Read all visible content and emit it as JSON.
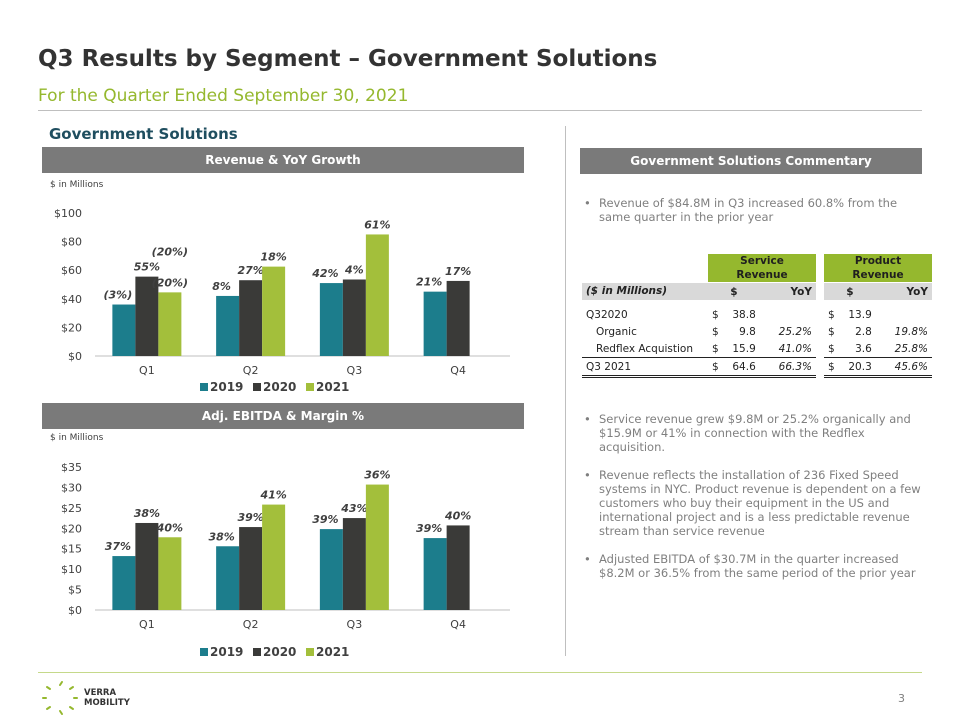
{
  "header": {
    "title": "Q3 Results by Segment – Government Solutions",
    "subtitle": "For the Quarter Ended September 30, 2021",
    "segment_title": "Government Solutions"
  },
  "colors": {
    "s2019": "#1c7d8c",
    "s2020": "#3a3a38",
    "s2021": "#a3bf3b",
    "header_bg": "#7a7a7a",
    "accent": "#95b82e"
  },
  "chart_data": [
    {
      "type": "bar",
      "title": "Revenue & YoY Growth",
      "units_label": "$ in Millions",
      "categories": [
        "Q1",
        "Q2",
        "Q3",
        "Q4"
      ],
      "yticks": [
        "$0",
        "$20",
        "$40",
        "$60",
        "$80",
        "$100"
      ],
      "ylim": [
        0,
        100
      ],
      "series": [
        {
          "name": "2019",
          "values": [
            36,
            42,
            51,
            45
          ],
          "labels": [
            "(3%)",
            "8%",
            "42%",
            "21%"
          ]
        },
        {
          "name": "2020",
          "values": [
            55.5,
            53,
            53.5,
            52.5
          ],
          "labels": [
            "55%",
            "27%",
            "4%",
            "17%"
          ]
        },
        {
          "name": "2021",
          "values": [
            44.5,
            62.5,
            85,
            null
          ],
          "labels": [
            "(20%)",
            "18%",
            "61%",
            ""
          ]
        }
      ],
      "annotation": "(20%)",
      "legend": "bottom"
    },
    {
      "type": "bar",
      "title": "Adj. EBITDA & Margin %",
      "units_label": "$ in Millions",
      "categories": [
        "Q1",
        "Q2",
        "Q3",
        "Q4"
      ],
      "yticks": [
        "$0",
        "$5",
        "$10",
        "$15",
        "$20",
        "$25",
        "$30",
        "$35"
      ],
      "ylim": [
        0,
        35
      ],
      "series": [
        {
          "name": "2019",
          "values": [
            13.2,
            15.6,
            19.8,
            17.6
          ],
          "labels": [
            "37%",
            "38%",
            "39%",
            "39%"
          ]
        },
        {
          "name": "2020",
          "values": [
            21.3,
            20.3,
            22.5,
            20.7
          ],
          "labels": [
            "38%",
            "39%",
            "43%",
            "40%"
          ]
        },
        {
          "name": "2021",
          "values": [
            17.8,
            25.8,
            30.7,
            null
          ],
          "labels": [
            "40%",
            "41%",
            "36%",
            ""
          ]
        }
      ],
      "legend": "bottom"
    }
  ],
  "commentary": {
    "header": "Government Solutions Commentary",
    "bullets_top": [
      "Revenue of $84.8M in Q3 increased 60.8% from the same quarter in the prior year"
    ],
    "bullets_bottom": [
      "Service revenue grew $9.8M or 25.2% organically and $15.9M or 41% in connection with the Redflex acquisition.",
      "Revenue reflects the installation of 236 Fixed Speed systems in NYC. Product revenue is dependent on a few customers who buy their equipment in the US and international project and is a less predictable revenue stream than service revenue",
      "Adjusted EBITDA of $30.7M in the quarter increased $8.2M or 36.5% from the same period of the prior year"
    ]
  },
  "table": {
    "service_header": "Service Revenue",
    "product_header": "Product Revenue",
    "units": "($ in Millions)",
    "col_dollar": "$",
    "col_yoy": "YoY",
    "rows": [
      {
        "label": "Q32020",
        "s_cur": "$",
        "s_val": "38.8",
        "s_yoy": "",
        "p_cur": "$",
        "p_val": "13.9",
        "p_yoy": ""
      },
      {
        "label": "Organic",
        "s_cur": "$",
        "s_val": "9.8",
        "s_yoy": "25.2%",
        "p_cur": "$",
        "p_val": "2.8",
        "p_yoy": "19.8%"
      },
      {
        "label": "Redflex Acquistion",
        "s_cur": "$",
        "s_val": "15.9",
        "s_yoy": "41.0%",
        "p_cur": "$",
        "p_val": "3.6",
        "p_yoy": "25.8%"
      },
      {
        "label": "Q3 2021",
        "s_cur": "$",
        "s_val": "64.6",
        "s_yoy": "66.3%",
        "p_cur": "$",
        "p_val": "20.3",
        "p_yoy": "45.6%"
      }
    ]
  },
  "footer": {
    "logo_line1": "VERRA",
    "logo_line2": "MOBILITY",
    "page_number": "3"
  }
}
